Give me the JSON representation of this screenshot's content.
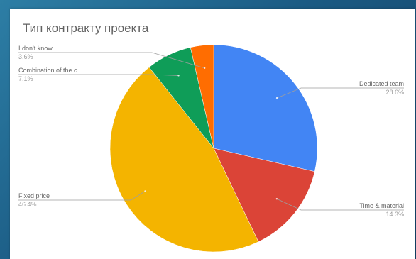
{
  "chart_data": {
    "type": "pie",
    "title": "Тип контракту проекта",
    "slices": [
      {
        "label": "Dedicated team",
        "value": 28.6,
        "display": "28.6%",
        "color": "#4285f4"
      },
      {
        "label": "Time & material",
        "value": 14.3,
        "display": "14.3%",
        "color": "#db4437"
      },
      {
        "label": "Fixed price",
        "value": 46.4,
        "display": "46.4%",
        "color": "#f4b400"
      },
      {
        "label": "Combination of the c...",
        "value": 7.1,
        "display": "7.1%",
        "color": "#0f9d58"
      },
      {
        "label": "I don't know",
        "value": 3.6,
        "display": "3.6%",
        "color": "#ff6d01"
      }
    ]
  }
}
